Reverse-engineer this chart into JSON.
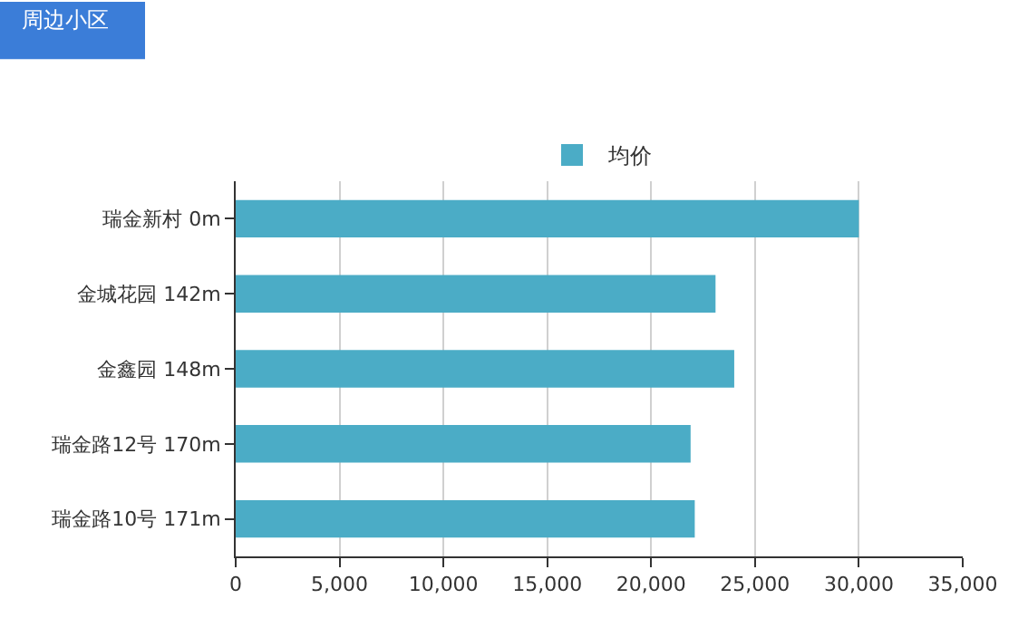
{
  "chart_data": {
    "type": "bar",
    "orientation": "horizontal",
    "title": "周边小区",
    "categories": [
      "瑞金新村 0m",
      "金城花园 142m",
      "金鑫园 148m",
      "瑞金路12号 170m",
      "瑞金路10号 171m"
    ],
    "series": [
      {
        "name": "均价",
        "color": "#4bacc6",
        "values": [
          30000,
          23100,
          24000,
          21900,
          22100
        ]
      }
    ],
    "xlim": [
      0,
      35000
    ],
    "xticks": [
      0,
      {
        "value": 5000,
        "label": "5,000"
      },
      {
        "value": 10000,
        "label": "10,000"
      },
      {
        "value": 15000,
        "label": "15,000"
      },
      {
        "value": 20000,
        "label": "20,000"
      },
      {
        "value": 25000,
        "label": "25,000"
      },
      {
        "value": 30000,
        "label": "30,000"
      },
      {
        "value": 35000,
        "label": "35,000"
      }
    ],
    "grid": "x",
    "legend": "top"
  }
}
